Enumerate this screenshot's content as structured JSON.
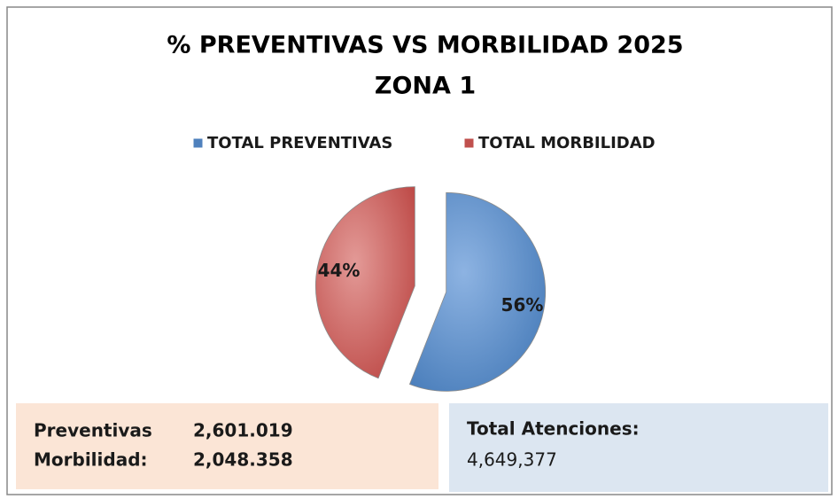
{
  "chart_data": {
    "type": "pie",
    "title": "% PREVENTIVAS VS MORBILIDAD 2025",
    "subtitle": "ZONA 1",
    "categories": [
      "TOTAL PREVENTIVAS",
      "TOTAL MORBILIDAD"
    ],
    "values": [
      56,
      44
    ],
    "value_labels": [
      "56%",
      "44%"
    ],
    "colors": [
      "#4f81bd",
      "#c0504d"
    ],
    "legend": "top",
    "exploded": true
  },
  "summary": {
    "rows": [
      {
        "label": "Preventivas",
        "value": "2,601.019"
      },
      {
        "label": "Morbilidad:",
        "value": "2,048.358"
      }
    ]
  },
  "total": {
    "label": "Total Atenciones:",
    "value": "4,649,377"
  }
}
